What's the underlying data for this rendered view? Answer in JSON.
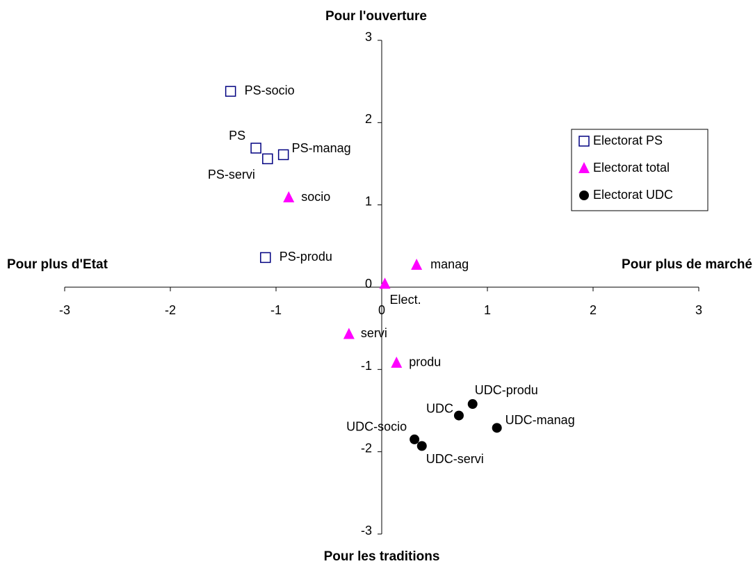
{
  "chart_data": {
    "type": "scatter",
    "axis_labels": {
      "top": "Pour l'ouverture",
      "bottom": "Pour les traditions",
      "left": "Pour plus d'Etat",
      "right": "Pour plus de marché"
    },
    "xlim": [
      -3,
      3
    ],
    "ylim": [
      -3,
      3
    ],
    "xticks": [
      -3,
      -2,
      -1,
      0,
      1,
      2,
      3
    ],
    "yticks": [
      -3,
      -2,
      -1,
      0,
      1,
      2,
      3
    ],
    "legend": "right",
    "series": [
      {
        "name": "Electorat PS",
        "color": "#000080",
        "marker": "square",
        "labels": [
          "PS-socio",
          "PS",
          "PS-manag",
          "PS-servi",
          "PS-produ"
        ],
        "x": [
          -1.43,
          -1.19,
          -0.93,
          -1.08,
          -1.1
        ],
        "values": [
          2.38,
          1.69,
          1.61,
          1.56,
          0.36
        ]
      },
      {
        "name": "Electorat total",
        "color": "#ff00ff",
        "marker": "triangle",
        "labels": [
          "socio",
          "manag",
          "Elect.",
          "servi",
          "produ"
        ],
        "x": [
          -0.88,
          0.33,
          0.03,
          -0.31,
          0.14
        ],
        "values": [
          1.09,
          0.27,
          0.04,
          -0.57,
          -0.92
        ]
      },
      {
        "name": "Electorat UDC",
        "color": "#000000",
        "marker": "circle",
        "labels": [
          "UDC-produ",
          "UDC",
          "UDC-manag",
          "UDC-socio",
          "UDC-servi"
        ],
        "x": [
          0.86,
          0.73,
          1.09,
          0.31,
          0.38
        ],
        "values": [
          -1.42,
          -1.56,
          -1.71,
          -1.85,
          -1.93
        ]
      }
    ]
  }
}
